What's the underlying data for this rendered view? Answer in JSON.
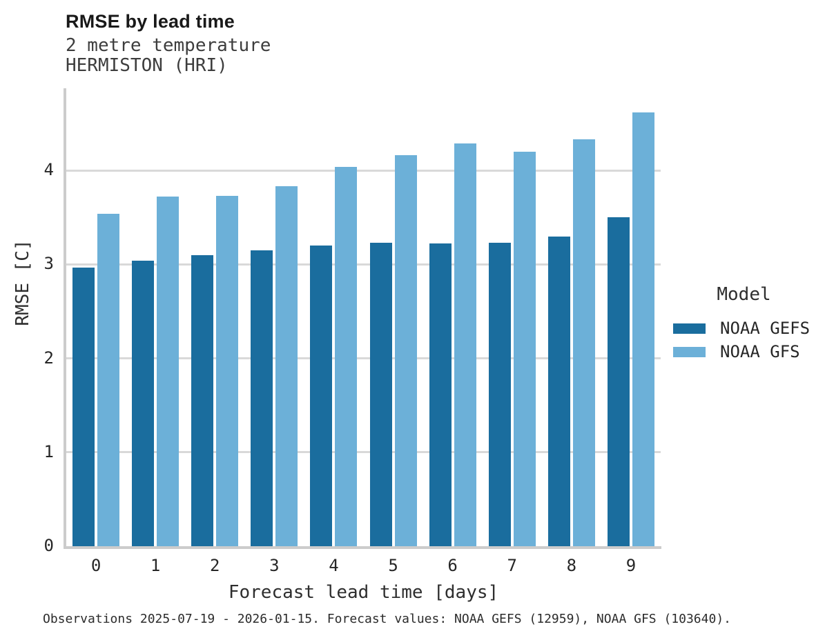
{
  "header": {
    "title": "RMSE by lead time",
    "subtitle_line1": "2 metre temperature",
    "subtitle_line2": "HERMISTON (HRI)"
  },
  "chart_data": {
    "type": "bar",
    "title": "RMSE by lead time",
    "subtitle": "2 metre temperature HERMISTON (HRI)",
    "categories": [
      "0",
      "1",
      "2",
      "3",
      "4",
      "5",
      "6",
      "7",
      "8",
      "9"
    ],
    "series": [
      {
        "name": "NOAA GEFS",
        "color": "#1a6d9e",
        "values": [
          2.97,
          3.04,
          3.1,
          3.15,
          3.2,
          3.23,
          3.22,
          3.23,
          3.3,
          3.5
        ]
      },
      {
        "name": "NOAA GFS",
        "color": "#6cb0d8",
        "values": [
          3.54,
          3.72,
          3.73,
          3.83,
          4.04,
          4.16,
          4.29,
          4.2,
          4.33,
          4.62
        ]
      }
    ],
    "xlabel": "Forecast lead time [days]",
    "ylabel": "RMSE [C]",
    "ylim": [
      0,
      4.89
    ],
    "yticks": [
      0,
      1,
      2,
      3,
      4
    ],
    "grid": "horizontal",
    "legend_position": "right"
  },
  "legend": {
    "title": "Model",
    "entries": [
      {
        "label": "NOAA GEFS",
        "color": "#1a6d9e"
      },
      {
        "label": "NOAA GFS",
        "color": "#6cb0d8"
      }
    ]
  },
  "caption": "Observations 2025-07-19 - 2026-01-15. Forecast values: NOAA GEFS (12959), NOAA GFS (103640)."
}
